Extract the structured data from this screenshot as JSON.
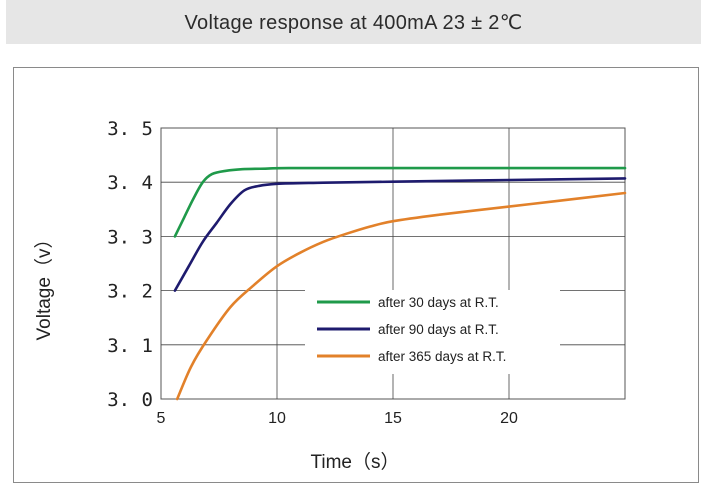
{
  "chart_data": {
    "type": "line",
    "title": "Voltage response at 400mA 23 ± 2℃",
    "xlabel": "Time（s）",
    "ylabel": "Voltage（v）",
    "xlim": [
      5,
      25
    ],
    "ylim": [
      3.0,
      3.5
    ],
    "xticks": [
      5,
      10,
      15,
      20
    ],
    "xtick_labels": [
      "5",
      "10",
      "15",
      "20"
    ],
    "yticks": [
      3.0,
      3.1,
      3.2,
      3.3,
      3.4,
      3.5
    ],
    "ytick_labels": [
      "3. 0",
      "3. 1",
      "3. 2",
      "3. 3",
      "3. 4",
      "3. 5"
    ],
    "grid": true,
    "legend_position": "center-right",
    "series": [
      {
        "name": "after 30 days at R.T.",
        "color": "#1f9a4a",
        "x": [
          5.6,
          6.0,
          6.4,
          6.8,
          7.2,
          7.8,
          8.5,
          9.5,
          10.5,
          15,
          20,
          25
        ],
        "y": [
          3.3,
          3.335,
          3.37,
          3.4,
          3.415,
          3.421,
          3.424,
          3.425,
          3.426,
          3.426,
          3.426,
          3.426
        ]
      },
      {
        "name": "after 90 days at R.T.",
        "color": "#1e1b6e",
        "x": [
          5.6,
          6.2,
          6.8,
          7.4,
          8.0,
          8.6,
          9.2,
          10.0,
          12,
          15,
          20,
          25
        ],
        "y": [
          3.2,
          3.245,
          3.29,
          3.325,
          3.36,
          3.385,
          3.393,
          3.397,
          3.399,
          3.401,
          3.404,
          3.407
        ]
      },
      {
        "name": "after 365 days at R.T.",
        "color": "#e2812a",
        "x": [
          5.7,
          6.3,
          7.0,
          8.0,
          9.0,
          10.0,
          11.0,
          12.0,
          13.0,
          14.0,
          15.0,
          17.0,
          20.0,
          22.0,
          25.0
        ],
        "y": [
          3.0,
          3.06,
          3.11,
          3.17,
          3.21,
          3.245,
          3.27,
          3.29,
          3.305,
          3.318,
          3.328,
          3.34,
          3.355,
          3.365,
          3.38
        ]
      }
    ]
  }
}
